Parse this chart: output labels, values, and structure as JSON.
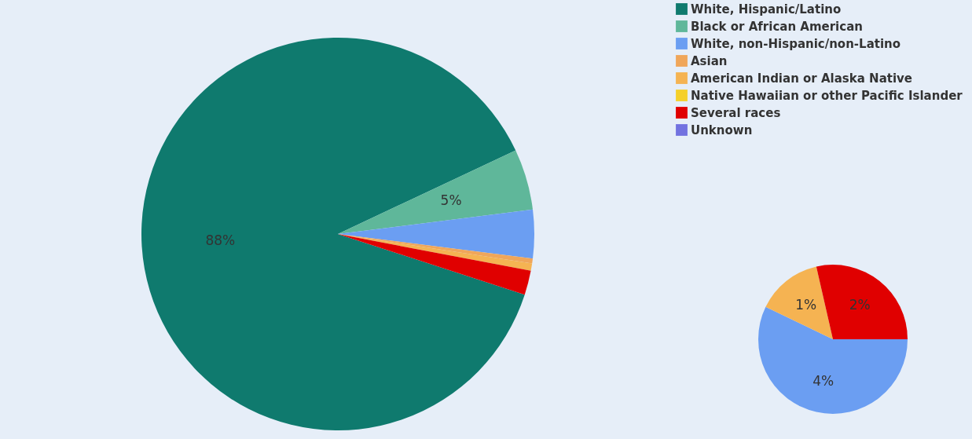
{
  "chart_data": [
    {
      "type": "pie",
      "categories": [
        "White, Hispanic/Latino",
        "Black or African American",
        "White, non-Hispanic/non-Latino",
        "Asian",
        "American Indian or Alaska Native",
        "Native Hawaiian or other Pacific Islander",
        "Several races",
        "Unknown"
      ],
      "values": [
        88,
        5,
        4,
        0.4,
        0.6,
        0,
        2,
        0
      ],
      "value_labels": [
        "88%",
        "5%",
        null,
        null,
        null,
        null,
        null,
        null
      ],
      "colors": [
        "#0f7a6e",
        "#5fb79a",
        "#6b9ef2",
        "#f0a65a",
        "#f5b352",
        "#f5d02a",
        "#e00000",
        "#7272e0"
      ],
      "legend": "top right"
    },
    {
      "type": "pie",
      "categories": [
        null,
        null,
        null
      ],
      "values": [
        4,
        1,
        2
      ],
      "value_labels": [
        "4%",
        "1%",
        "2%"
      ],
      "colors": [
        "#6b9ef2",
        "#f5b352",
        "#e00000"
      ]
    }
  ]
}
